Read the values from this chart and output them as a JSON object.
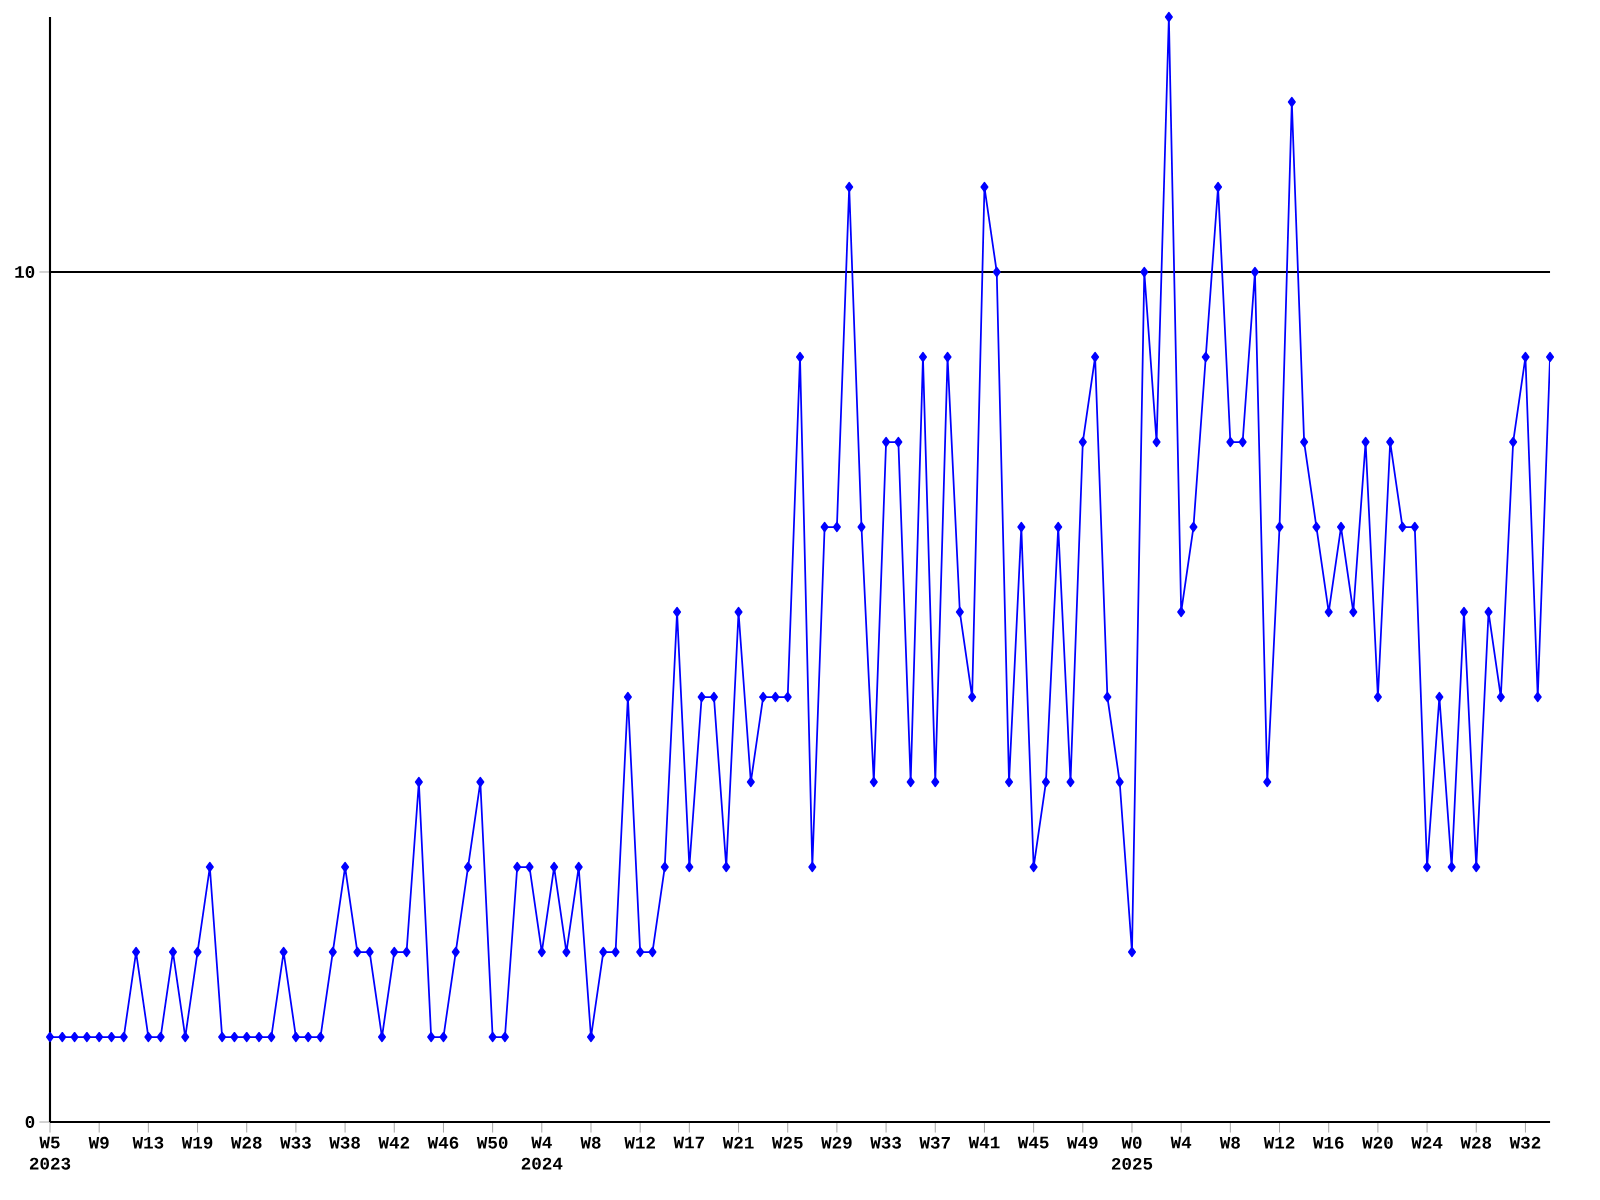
{
  "chart_data": {
    "type": "line",
    "categories": [
      "W5 2023",
      null,
      null,
      null,
      "W9",
      null,
      null,
      null,
      "W13",
      null,
      null,
      null,
      "W19",
      null,
      null,
      null,
      "W28",
      null,
      null,
      null,
      "W33",
      null,
      null,
      null,
      "W38",
      null,
      null,
      null,
      "W42",
      null,
      null,
      null,
      "W46",
      null,
      null,
      null,
      "W50",
      null,
      null,
      null,
      "W4 2024",
      null,
      null,
      null,
      "W8",
      null,
      null,
      null,
      "W12",
      null,
      null,
      null,
      "W17",
      null,
      null,
      null,
      "W21",
      null,
      null,
      null,
      "W25",
      null,
      null,
      null,
      "W29",
      null,
      null,
      null,
      "W33",
      null,
      null,
      null,
      "W37",
      null,
      null,
      null,
      "W41",
      null,
      null,
      null,
      "W45",
      null,
      null,
      null,
      "W49",
      null,
      null,
      null,
      "W0 2025",
      null,
      null,
      null,
      "W4",
      null,
      null,
      null,
      "W8",
      null,
      null,
      null,
      "W12",
      null,
      null,
      null,
      "W16",
      null,
      null,
      null,
      "W20",
      null,
      null,
      null,
      "W24",
      null,
      null,
      null,
      "W28",
      null,
      null,
      null,
      "W32",
      null,
      null
    ],
    "values": [
      1,
      1,
      1,
      1,
      1,
      1,
      1,
      2,
      1,
      1,
      2,
      1,
      2,
      3,
      1,
      1,
      1,
      1,
      1,
      2,
      1,
      1,
      1,
      2,
      3,
      2,
      2,
      1,
      2,
      2,
      4,
      1,
      1,
      2,
      3,
      4,
      1,
      1,
      3,
      3,
      2,
      3,
      2,
      3,
      1,
      2,
      2,
      5,
      2,
      2,
      3,
      6,
      3,
      5,
      5,
      3,
      6,
      4,
      5,
      5,
      5,
      9,
      3,
      7,
      7,
      11,
      7,
      4,
      8,
      8,
      4,
      9,
      4,
      9,
      6,
      5,
      11,
      10,
      4,
      7,
      3,
      4,
      7,
      4,
      8,
      9,
      5,
      4,
      2,
      10,
      8,
      13,
      6,
      7,
      9,
      11,
      8,
      8,
      10,
      4,
      7,
      12,
      8,
      7,
      6,
      7,
      6,
      8,
      5,
      8,
      7,
      7,
      3,
      5,
      3,
      6,
      3,
      6,
      5,
      8,
      9,
      5,
      9
    ],
    "color": "#0000ff",
    "marker": "diamond",
    "line_style": "solid",
    "grid": "y",
    "ylim": [
      0,
      13
    ],
    "yticks": [
      0,
      10
    ]
  }
}
